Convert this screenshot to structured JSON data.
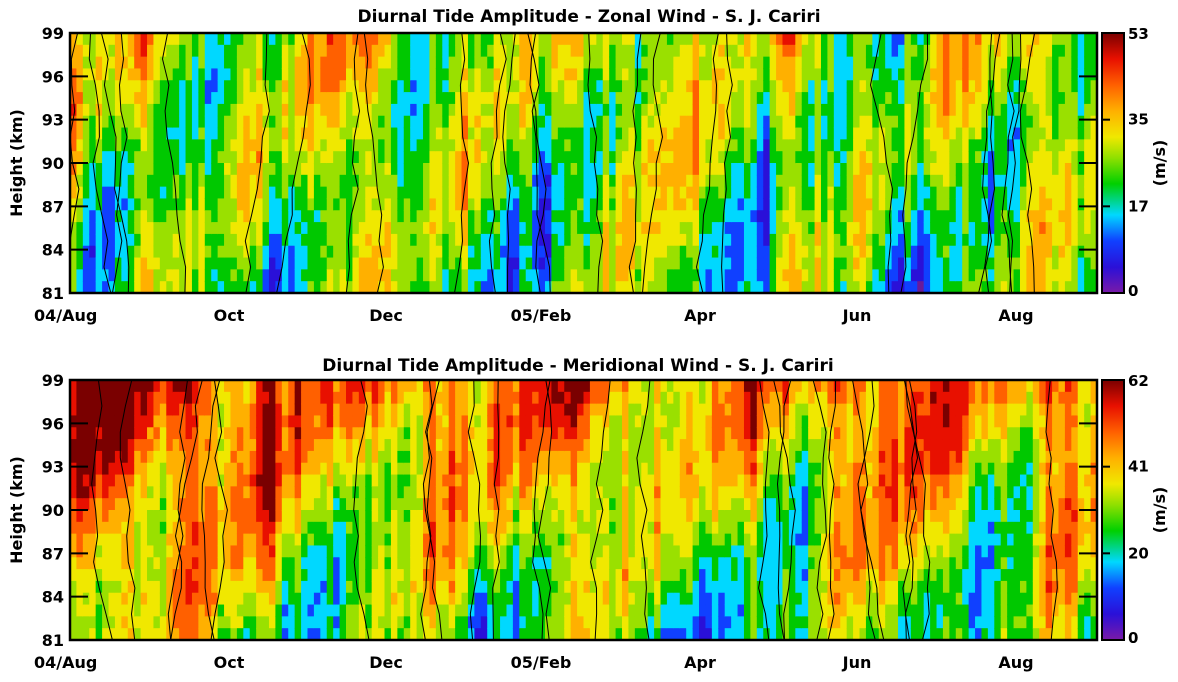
{
  "chart_data": [
    {
      "type": "heatmap",
      "title": "Diurnal Tide Amplitude - Zonal Wind - S. J. Cariri",
      "ylabel": "Height (km)",
      "yticks": [
        "81",
        "84",
        "87",
        "90",
        "93",
        "96",
        "99"
      ],
      "ylim": [
        81,
        99
      ],
      "xticks": [
        "04/Aug",
        "Oct",
        "Dec",
        "05/Feb",
        "Apr",
        "Jun",
        "Aug"
      ],
      "colorbar": {
        "label": "(m/s)",
        "ticks": [
          "0",
          "17",
          "35",
          "53"
        ],
        "range": [
          0,
          53
        ]
      },
      "contour_lines": true,
      "colormap": "rainbow (purple-blue-cyan-green-yellow-orange-red-darkred)"
    },
    {
      "type": "heatmap",
      "title": "Diurnal Tide Amplitude - Meridional Wind - S. J. Cariri",
      "ylabel": "Height (km)",
      "yticks": [
        "81",
        "84",
        "87",
        "90",
        "93",
        "96",
        "99"
      ],
      "ylim": [
        81,
        99
      ],
      "xticks": [
        "04/Aug",
        "Oct",
        "Dec",
        "05/Feb",
        "Apr",
        "Jun",
        "Aug"
      ],
      "colorbar": {
        "label": "(m/s)",
        "ticks": [
          "0",
          "20",
          "41",
          "62"
        ],
        "range": [
          0,
          62
        ]
      },
      "contour_lines": true,
      "colormap": "rainbow (purple-blue-cyan-green-yellow-orange-red-darkred)"
    }
  ]
}
